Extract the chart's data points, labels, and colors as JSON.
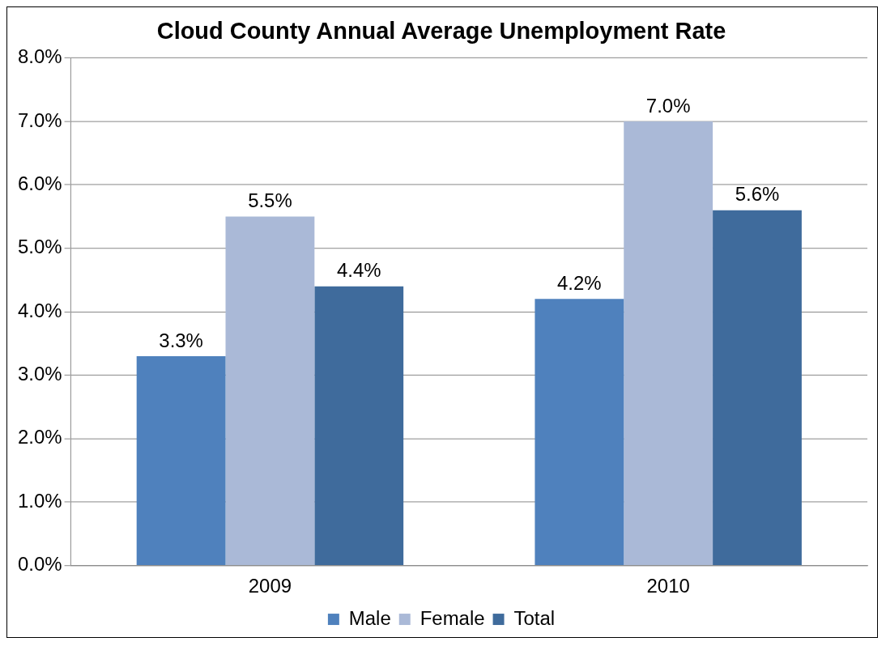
{
  "chart_data": {
    "type": "bar",
    "title": "Cloud County Annual Average Unemployment Rate",
    "categories": [
      "2009",
      "2010"
    ],
    "series": [
      {
        "name": "Male",
        "color": "#4f81bd",
        "values": [
          3.3,
          4.2
        ],
        "value_labels": [
          "3.3%",
          "4.2%"
        ]
      },
      {
        "name": "Female",
        "color": "#aab9d7",
        "values": [
          5.5,
          7.0
        ],
        "value_labels": [
          "5.5%",
          "7.0%"
        ]
      },
      {
        "name": "Total",
        "color": "#3f6b9c",
        "values": [
          4.4,
          5.6
        ],
        "value_labels": [
          "4.4%",
          "5.6%"
        ]
      }
    ],
    "ylim": [
      0,
      8
    ],
    "yticks": [
      {
        "value": 0,
        "label": "0.0%"
      },
      {
        "value": 1,
        "label": "1.0%"
      },
      {
        "value": 2,
        "label": "2.0%"
      },
      {
        "value": 3,
        "label": "3.0%"
      },
      {
        "value": 4,
        "label": "4.0%"
      },
      {
        "value": 5,
        "label": "5.0%"
      },
      {
        "value": 6,
        "label": "6.0%"
      },
      {
        "value": 7,
        "label": "7.0%"
      },
      {
        "value": 8,
        "label": "8.0%"
      }
    ],
    "grid": "y",
    "legend": "bottom"
  }
}
